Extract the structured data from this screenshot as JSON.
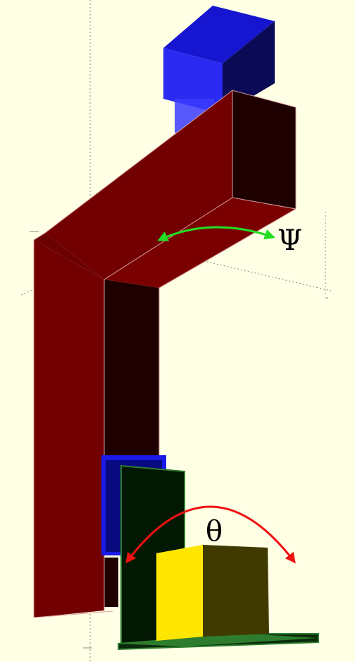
{
  "labels": {
    "psi": "Ψ",
    "theta": "θ"
  },
  "colors": {
    "background": "#ffffe5",
    "arm_front": "#720000",
    "arm_dark": "#1e0000",
    "arm_top": "#800000",
    "motor_front": "#2a2af2",
    "motor_dark": "#0a0a55",
    "motor_top": "#1616d0",
    "plate_dark": "#021802",
    "plate_edge": "#2e7d2e",
    "block_light": "#ffe600",
    "block_dark": "#403a00",
    "psi_arrow": "#22dd22",
    "theta_arrow": "#ee1111"
  }
}
